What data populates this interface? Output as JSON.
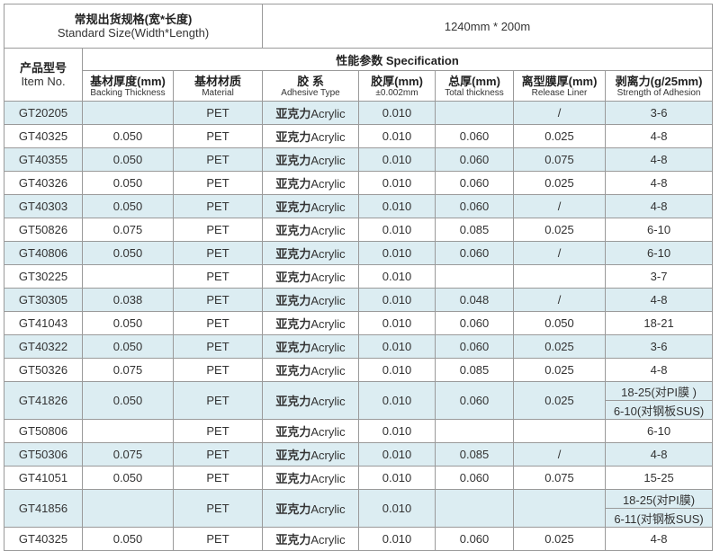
{
  "standard_size": {
    "label_zh": "常规出货规格(宽*长度)",
    "label_en": "Standard Size(Width*Length)",
    "value": "1240mm * 200m"
  },
  "item_header": {
    "zh": "产品型号",
    "en": "Item No."
  },
  "spec_header": "性能参数 Specification",
  "columns": [
    {
      "zh": "基材厚度(mm)",
      "en": "Backing Thickness"
    },
    {
      "zh": "基材材质",
      "en": "Material"
    },
    {
      "zh": "胶 系",
      "en": "Adhesive Type"
    },
    {
      "zh": "胶厚(mm)",
      "en": "±0.002mm"
    },
    {
      "zh": "总厚(mm)",
      "en": "Total thickness"
    },
    {
      "zh": "离型膜厚(mm)",
      "en": "Release Liner"
    },
    {
      "zh": "剥离力(g/25mm)",
      "en": "Strength of Adhesion"
    }
  ],
  "adhesive_zh": "亚克力",
  "adhesive_en": "Acrylic",
  "rows": [
    {
      "item": "GT20205",
      "backing": "",
      "material": "PET",
      "adhesive_thk": "0.010",
      "total": "",
      "liner": "/",
      "strength": [
        "3-6"
      ]
    },
    {
      "item": "GT40325",
      "backing": "0.050",
      "material": "PET",
      "adhesive_thk": "0.010",
      "total": "0.060",
      "liner": "0.025",
      "strength": [
        "4-8"
      ]
    },
    {
      "item": "GT40355",
      "backing": "0.050",
      "material": "PET",
      "adhesive_thk": "0.010",
      "total": "0.060",
      "liner": "0.075",
      "strength": [
        "4-8"
      ]
    },
    {
      "item": "GT40326",
      "backing": "0.050",
      "material": "PET",
      "adhesive_thk": "0.010",
      "total": "0.060",
      "liner": "0.025",
      "strength": [
        "4-8"
      ]
    },
    {
      "item": "GT40303",
      "backing": "0.050",
      "material": "PET",
      "adhesive_thk": "0.010",
      "total": "0.060",
      "liner": "/",
      "strength": [
        "4-8"
      ]
    },
    {
      "item": "GT50826",
      "backing": "0.075",
      "material": "PET",
      "adhesive_thk": "0.010",
      "total": "0.085",
      "liner": "0.025",
      "strength": [
        "6-10"
      ]
    },
    {
      "item": "GT40806",
      "backing": "0.050",
      "material": "PET",
      "adhesive_thk": "0.010",
      "total": "0.060",
      "liner": "/",
      "strength": [
        "6-10"
      ]
    },
    {
      "item": "GT30225",
      "backing": "",
      "material": "PET",
      "adhesive_thk": "0.010",
      "total": "",
      "liner": "",
      "strength": [
        "3-7"
      ]
    },
    {
      "item": "GT30305",
      "backing": "0.038",
      "material": "PET",
      "adhesive_thk": "0.010",
      "total": "0.048",
      "liner": "/",
      "strength": [
        "4-8"
      ]
    },
    {
      "item": "GT41043",
      "backing": "0.050",
      "material": "PET",
      "adhesive_thk": "0.010",
      "total": "0.060",
      "liner": "0.050",
      "strength": [
        "18-21"
      ]
    },
    {
      "item": "GT40322",
      "backing": "0.050",
      "material": "PET",
      "adhesive_thk": "0.010",
      "total": "0.060",
      "liner": "0.025",
      "strength": [
        "3-6"
      ]
    },
    {
      "item": "GT50326",
      "backing": "0.075",
      "material": "PET",
      "adhesive_thk": "0.010",
      "total": "0.085",
      "liner": "0.025",
      "strength": [
        "4-8"
      ]
    },
    {
      "item": "GT41826",
      "backing": "0.050",
      "material": "PET",
      "adhesive_thk": "0.010",
      "total": "0.060",
      "liner": "0.025",
      "strength": [
        "18-25(对PI膜 )",
        "6-10(对钢板SUS)"
      ]
    },
    {
      "item": "GT50806",
      "backing": "",
      "material": "PET",
      "adhesive_thk": "0.010",
      "total": "",
      "liner": "",
      "strength": [
        "6-10"
      ]
    },
    {
      "item": "GT50306",
      "backing": "0.075",
      "material": "PET",
      "adhesive_thk": "0.010",
      "total": "0.085",
      "liner": "/",
      "strength": [
        "4-8"
      ]
    },
    {
      "item": "GT41051",
      "backing": "0.050",
      "material": "PET",
      "adhesive_thk": "0.010",
      "total": "0.060",
      "liner": "0.075",
      "strength": [
        "15-25"
      ]
    },
    {
      "item": "GT41856",
      "backing": "",
      "material": "PET",
      "adhesive_thk": "0.010",
      "total": "",
      "liner": "",
      "strength": [
        "18-25(对PI膜)",
        "6-11(对钢板SUS)"
      ]
    },
    {
      "item": "GT40325",
      "backing": "0.050",
      "material": "PET",
      "adhesive_thk": "0.010",
      "total": "0.060",
      "liner": "0.025",
      "strength": [
        "4-8"
      ]
    }
  ]
}
